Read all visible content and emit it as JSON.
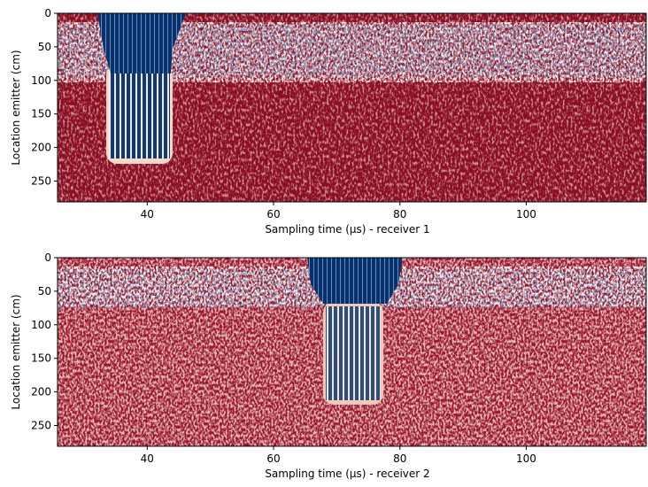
{
  "chart_data": [
    {
      "type": "image",
      "x_label": "Sampling time (μs) - receiver 1",
      "y_label": "Location emitter (cm)",
      "xlim": [
        25.8,
        119
      ],
      "ylim": [
        281,
        0
      ],
      "xticks": [
        40,
        60,
        80,
        100
      ],
      "yticks": [
        0,
        50,
        100,
        150,
        200,
        250
      ]
    },
    {
      "type": "image",
      "x_label": "Sampling time (μs) - receiver 2",
      "y_label": "Location emitter (cm)",
      "xlim": [
        25.8,
        119
      ],
      "ylim": [
        281,
        0
      ],
      "xticks": [
        40,
        60,
        80,
        100
      ],
      "yticks": [
        0,
        50,
        100,
        150,
        200,
        250
      ]
    }
  ]
}
